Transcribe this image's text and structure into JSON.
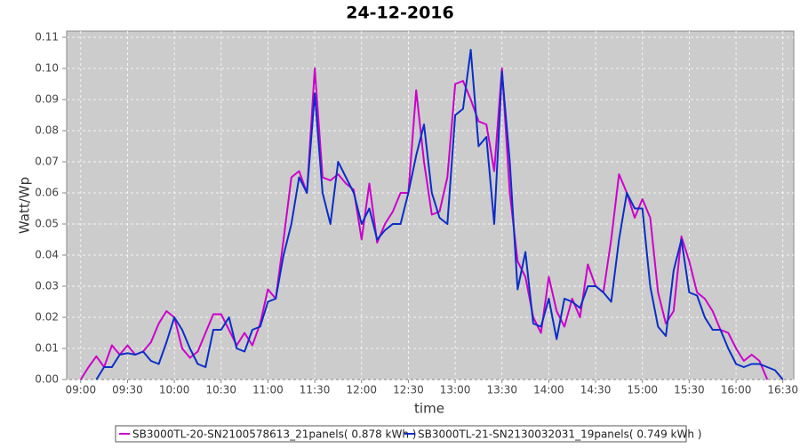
{
  "chart_data": {
    "type": "line",
    "title": "24-12-2016",
    "xlabel": "time",
    "ylabel": "Watt/Wp",
    "x": [
      "09:00",
      "09:05",
      "09:10",
      "09:15",
      "09:20",
      "09:25",
      "09:30",
      "09:35",
      "09:40",
      "09:45",
      "09:50",
      "09:55",
      "10:00",
      "10:05",
      "10:10",
      "10:15",
      "10:20",
      "10:25",
      "10:30",
      "10:35",
      "10:40",
      "10:45",
      "10:50",
      "10:55",
      "11:00",
      "11:05",
      "11:10",
      "11:15",
      "11:20",
      "11:25",
      "11:30",
      "11:35",
      "11:40",
      "11:45",
      "11:50",
      "11:55",
      "12:00",
      "12:05",
      "12:10",
      "12:15",
      "12:20",
      "12:25",
      "12:30",
      "12:35",
      "12:40",
      "12:45",
      "12:50",
      "12:55",
      "13:00",
      "13:05",
      "13:10",
      "13:15",
      "13:20",
      "13:25",
      "13:30",
      "13:35",
      "13:40",
      "13:45",
      "13:50",
      "13:55",
      "14:00",
      "14:05",
      "14:10",
      "14:15",
      "14:20",
      "14:25",
      "14:30",
      "14:35",
      "14:40",
      "14:45",
      "14:50",
      "14:55",
      "15:00",
      "15:05",
      "15:10",
      "15:15",
      "15:20",
      "15:25",
      "15:30",
      "15:35",
      "15:40",
      "15:45",
      "15:50",
      "15:55",
      "16:00",
      "16:05",
      "16:10",
      "16:15",
      "16:20",
      "16:25",
      "16:30"
    ],
    "series": [
      {
        "name": "SB3000TL-20-SN2100578613_21panels( 0.878 kWh )",
        "color": "#cc00cc",
        "values": [
          0,
          0.004,
          0.0075,
          0.004,
          0.011,
          0.008,
          0.011,
          0.008,
          0.009,
          0.012,
          0.018,
          0.022,
          0.02,
          0.01,
          0.007,
          0.009,
          0.015,
          0.021,
          0.021,
          0.016,
          0.011,
          0.015,
          0.011,
          0.018,
          0.029,
          0.026,
          0.045,
          0.065,
          0.067,
          0.06,
          0.1,
          0.065,
          0.064,
          0.066,
          0.063,
          0.061,
          0.045,
          0.063,
          0.044,
          0.05,
          0.054,
          0.06,
          0.06,
          0.093,
          0.07,
          0.053,
          0.054,
          0.065,
          0.095,
          0.096,
          0.09,
          0.083,
          0.082,
          0.067,
          0.1,
          0.06,
          0.038,
          0.033,
          0.02,
          0.015,
          0.033,
          0.022,
          0.017,
          0.026,
          0.02,
          0.037,
          0.03,
          0.028,
          0.045,
          0.066,
          0.06,
          0.052,
          0.058,
          0.052,
          0.028,
          0.018,
          0.022,
          0.046,
          0.038,
          0.028,
          0.026,
          0.022,
          0.016,
          0.015,
          0.01,
          0.006,
          0.008,
          0.006,
          0,
          null,
          null
        ]
      },
      {
        "name": "SB3000TL-21-SN2130032031_19panels( 0.749 kWh )",
        "color": "#0a2ec8",
        "values": [
          null,
          null,
          0,
          0.004,
          0.004,
          0.008,
          0.0085,
          0.008,
          0.009,
          0.006,
          0.005,
          0.012,
          0.02,
          0.016,
          0.01,
          0.005,
          0.004,
          0.016,
          0.016,
          0.02,
          0.01,
          0.009,
          0.016,
          0.017,
          0.025,
          0.026,
          0.04,
          0.05,
          0.065,
          0.06,
          0.092,
          0.06,
          0.05,
          0.07,
          0.065,
          0.06,
          0.05,
          0.055,
          0.045,
          0.048,
          0.05,
          0.05,
          0.06,
          0.072,
          0.082,
          0.06,
          0.052,
          0.05,
          0.085,
          0.087,
          0.106,
          0.075,
          0.078,
          0.05,
          0.099,
          0.07,
          0.029,
          0.041,
          0.018,
          0.017,
          0.026,
          0.013,
          0.026,
          0.025,
          0.023,
          0.03,
          0.03,
          0.028,
          0.025,
          0.045,
          0.06,
          0.055,
          0.055,
          0.03,
          0.017,
          0.014,
          0.035,
          0.045,
          0.028,
          0.027,
          0.02,
          0.016,
          0.016,
          0.01,
          0.005,
          0.004,
          0.005,
          0.005,
          0.004,
          0.003,
          0
        ]
      }
    ],
    "xlim": [
      "08:51",
      "16:37"
    ],
    "xticks": [
      "09:00",
      "09:30",
      "10:00",
      "10:30",
      "11:00",
      "11:30",
      "12:00",
      "12:30",
      "13:00",
      "13:30",
      "14:00",
      "14:30",
      "15:00",
      "15:30",
      "16:00",
      "16:30"
    ],
    "ylim": [
      0,
      0.112
    ],
    "yticks": [
      {
        "value": 0,
        "label": "0.00"
      },
      {
        "value": 0.01,
        "label": "0.01"
      },
      {
        "value": 0.02,
        "label": "0.02"
      },
      {
        "value": 0.03,
        "label": "0.03"
      },
      {
        "value": 0.04,
        "label": "0.04"
      },
      {
        "value": 0.05,
        "label": "0.05"
      },
      {
        "value": 0.06,
        "label": "0.06"
      },
      {
        "value": 0.07,
        "label": "0.07"
      },
      {
        "value": 0.08,
        "label": "0.08"
      },
      {
        "value": 0.09,
        "label": "0.09"
      },
      {
        "value": 0.1,
        "label": "0.10"
      },
      {
        "value": 0.11,
        "label": "0.11"
      }
    ],
    "grid": true
  }
}
